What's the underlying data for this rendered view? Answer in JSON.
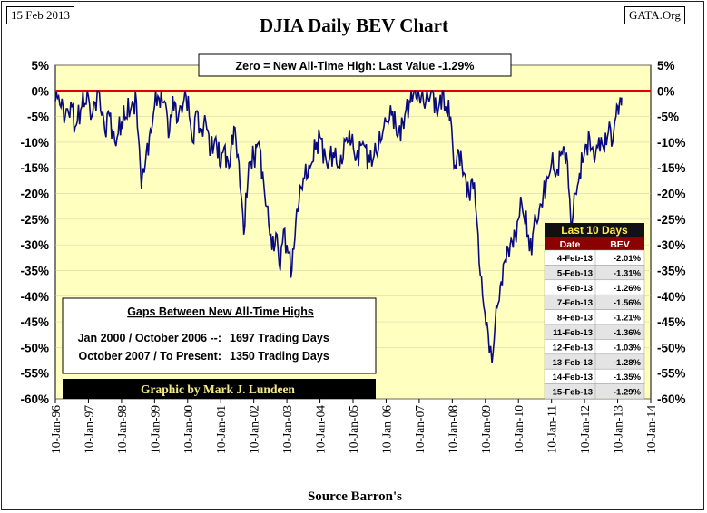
{
  "date_label": "15 Feb 2013",
  "source_credit": "GATA.Org",
  "chart_data": {
    "type": "line",
    "title": "DJIA Daily BEV Chart",
    "xlabel": "Source Barron's",
    "ylabel": "",
    "ylim": [
      -60,
      5
    ],
    "yticks": [
      5,
      0,
      -5,
      -10,
      -15,
      -20,
      -25,
      -30,
      -35,
      -40,
      -45,
      -50,
      -55,
      -60
    ],
    "ytick_labels": [
      "5%",
      "0%",
      "-5%",
      "-10%",
      "-15%",
      "-20%",
      "-25%",
      "-30%",
      "-35%",
      "-40%",
      "-45%",
      "-50%",
      "-55%",
      "-60%"
    ],
    "xlim": [
      1996.0,
      2014.0
    ],
    "xtick_labels": [
      "10-Jan-96",
      "10-Jan-97",
      "10-Jan-98",
      "10-Jan-99",
      "10-Jan-00",
      "10-Jan-01",
      "10-Jan-02",
      "10-Jan-03",
      "10-Jan-04",
      "10-Jan-05",
      "10-Jan-06",
      "10-Jan-07",
      "10-Jan-08",
      "10-Jan-09",
      "10-Jan-10",
      "10-Jan-11",
      "10-Jan-12",
      "10-Jan-13",
      "10-Jan-14"
    ],
    "series": [
      {
        "name": "DJIA BEV",
        "x": [
          1996.0,
          1996.1,
          1996.3,
          1996.5,
          1996.6,
          1996.8,
          1997.0,
          1997.1,
          1997.3,
          1997.5,
          1997.6,
          1997.8,
          1998.0,
          1998.3,
          1998.45,
          1998.6,
          1998.75,
          1998.9,
          1999.0,
          1999.1,
          1999.3,
          1999.45,
          1999.55,
          1999.7,
          1999.8,
          1999.95,
          2000.05,
          2000.15,
          2000.25,
          2000.4,
          2000.55,
          2000.7,
          2000.85,
          2001.0,
          2001.1,
          2001.25,
          2001.4,
          2001.55,
          2001.7,
          2001.85,
          2002.0,
          2002.15,
          2002.3,
          2002.45,
          2002.55,
          2002.7,
          2002.8,
          2002.9,
          2003.0,
          2003.15,
          2003.3,
          2003.5,
          2003.7,
          2003.9,
          2004.0,
          2004.2,
          2004.4,
          2004.6,
          2004.8,
          2004.95,
          2005.1,
          2005.3,
          2005.5,
          2005.7,
          2005.9,
          2006.0,
          2006.2,
          2006.35,
          2006.5,
          2006.7,
          2006.85,
          2007.0,
          2007.2,
          2007.4,
          2007.55,
          2007.7,
          2007.8,
          2007.95,
          2008.05,
          2008.2,
          2008.35,
          2008.5,
          2008.6,
          2008.7,
          2008.78,
          2008.85,
          2008.95,
          2009.05,
          2009.12,
          2009.2,
          2009.3,
          2009.45,
          2009.6,
          2009.75,
          2009.9,
          2010.0,
          2010.1,
          2010.3,
          2010.4,
          2010.5,
          2010.6,
          2010.75,
          2010.9,
          2011.0,
          2011.15,
          2011.3,
          2011.45,
          2011.55,
          2011.62,
          2011.72,
          2011.85,
          2012.0,
          2012.15,
          2012.3,
          2012.4,
          2012.5,
          2012.6,
          2012.75,
          2012.85,
          2012.95,
          2013.0,
          2013.05,
          2013.1,
          2013.12
        ],
        "values": [
          -2,
          -1,
          -5,
          -3,
          -7,
          -3,
          -1,
          -5,
          0,
          -8,
          -4,
          -10,
          -6,
          -3,
          -2,
          -19,
          -12,
          -8,
          -3,
          -1,
          -2,
          -8,
          -1,
          -6,
          -3,
          -1,
          -5,
          -10,
          -4,
          -8,
          -6,
          -12,
          -9,
          -15,
          -11,
          -15,
          -7,
          -14,
          -28,
          -14,
          -13,
          -10,
          -18,
          -26,
          -31,
          -28,
          -35,
          -27,
          -30,
          -35,
          -23,
          -17,
          -15,
          -10,
          -9,
          -14,
          -12,
          -15,
          -9,
          -10,
          -13,
          -10,
          -14,
          -12,
          -8,
          -6,
          -4,
          -9,
          -6,
          -2,
          0,
          -1,
          -2,
          0,
          -5,
          0,
          -3,
          -5,
          -15,
          -12,
          -16,
          -20,
          -17,
          -22,
          -28,
          -36,
          -42,
          -45,
          -51,
          -53,
          -45,
          -38,
          -33,
          -30,
          -28,
          -25,
          -22,
          -28,
          -32,
          -24,
          -25,
          -20,
          -17,
          -14,
          -16,
          -12,
          -12,
          -21,
          -26,
          -20,
          -16,
          -12,
          -9,
          -14,
          -11,
          -9,
          -12,
          -6,
          -10,
          -5,
          -3,
          -2.5,
          -1.5,
          -1.29
        ]
      }
    ],
    "zero_line_note": "Zero = New All-Time High: Last Value  -1.29%",
    "gaps_box": {
      "title": "Gaps Between New All-Time Highs",
      "rows": [
        {
          "period": "Jan 2000 / October 2006 --:",
          "days": "1697 Trading Days"
        },
        {
          "period": "October 2007 / To Present:",
          "days": "1350 Trading Days"
        }
      ]
    },
    "credit": "Graphic by Mark J. Lundeen",
    "last_10_days": {
      "title": "Last 10 Days",
      "headers": [
        "Date",
        "BEV"
      ],
      "rows": [
        {
          "date": "4-Feb-13",
          "bev": "-2.01%"
        },
        {
          "date": "5-Feb-13",
          "bev": "-1.31%"
        },
        {
          "date": "6-Feb-13",
          "bev": "-1.26%"
        },
        {
          "date": "7-Feb-13",
          "bev": "-1.56%"
        },
        {
          "date": "8-Feb-13",
          "bev": "-1.21%"
        },
        {
          "date": "11-Feb-13",
          "bev": "-1.36%"
        },
        {
          "date": "12-Feb-13",
          "bev": "-1.03%"
        },
        {
          "date": "13-Feb-13",
          "bev": "-1.28%"
        },
        {
          "date": "14-Feb-13",
          "bev": "-1.35%"
        },
        {
          "date": "15-Feb-13",
          "bev": "-1.29%"
        }
      ]
    }
  },
  "colors": {
    "plot_bg": "#ffffc0",
    "line": "#0a0a80",
    "zero_line": "#e00000",
    "table_header": "#8b0000",
    "table_title_bg": "#111111",
    "table_title_fg": "#ffe84d",
    "credit_bg": "#000000",
    "credit_fg": "#f5e98a"
  }
}
